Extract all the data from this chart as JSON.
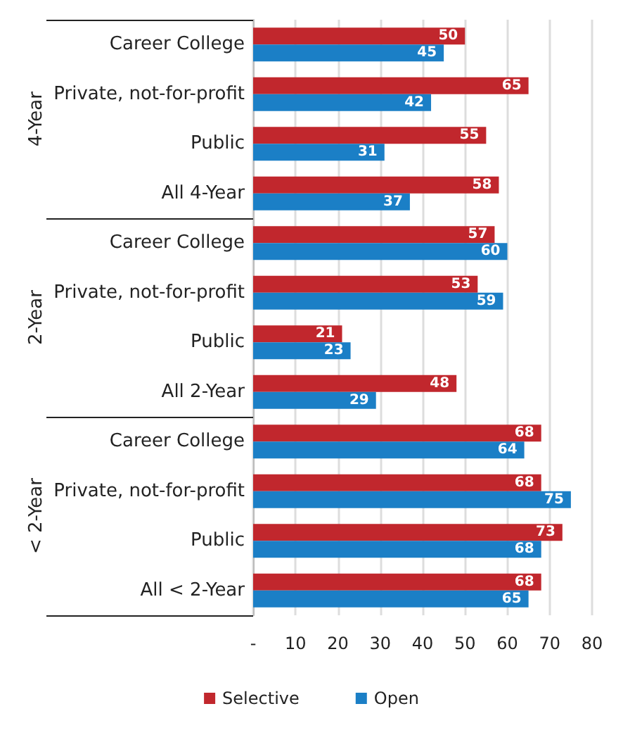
{
  "chart_data": {
    "type": "bar",
    "orientation": "horizontal",
    "categories": [
      "Career College",
      "Private, not-for-profit",
      "Public",
      "All 4-Year",
      "Career College",
      "Private, not-for-profit",
      "Public",
      "All 2-Year",
      "Career College",
      "Private, not-for-profit",
      "Public",
      "All < 2-Year"
    ],
    "series": [
      {
        "name": "Selective",
        "color": "#c1272d",
        "values": [
          50,
          65,
          55,
          58,
          57,
          53,
          21,
          48,
          68,
          68,
          73,
          68
        ]
      },
      {
        "name": "Open",
        "color": "#1b7fc6",
        "values": [
          45,
          42,
          31,
          37,
          60,
          59,
          23,
          29,
          64,
          75,
          68,
          65
        ]
      }
    ],
    "xlim": [
      0,
      80
    ],
    "xticks": [
      {
        "value": 0,
        "label": "-"
      },
      10,
      20,
      30,
      40,
      50,
      60,
      70,
      80
    ],
    "grid": "x",
    "legend": "bottom",
    "data_labels": true,
    "annotations": [
      "4-Year",
      "2-Year",
      "< 2-Year"
    ]
  }
}
